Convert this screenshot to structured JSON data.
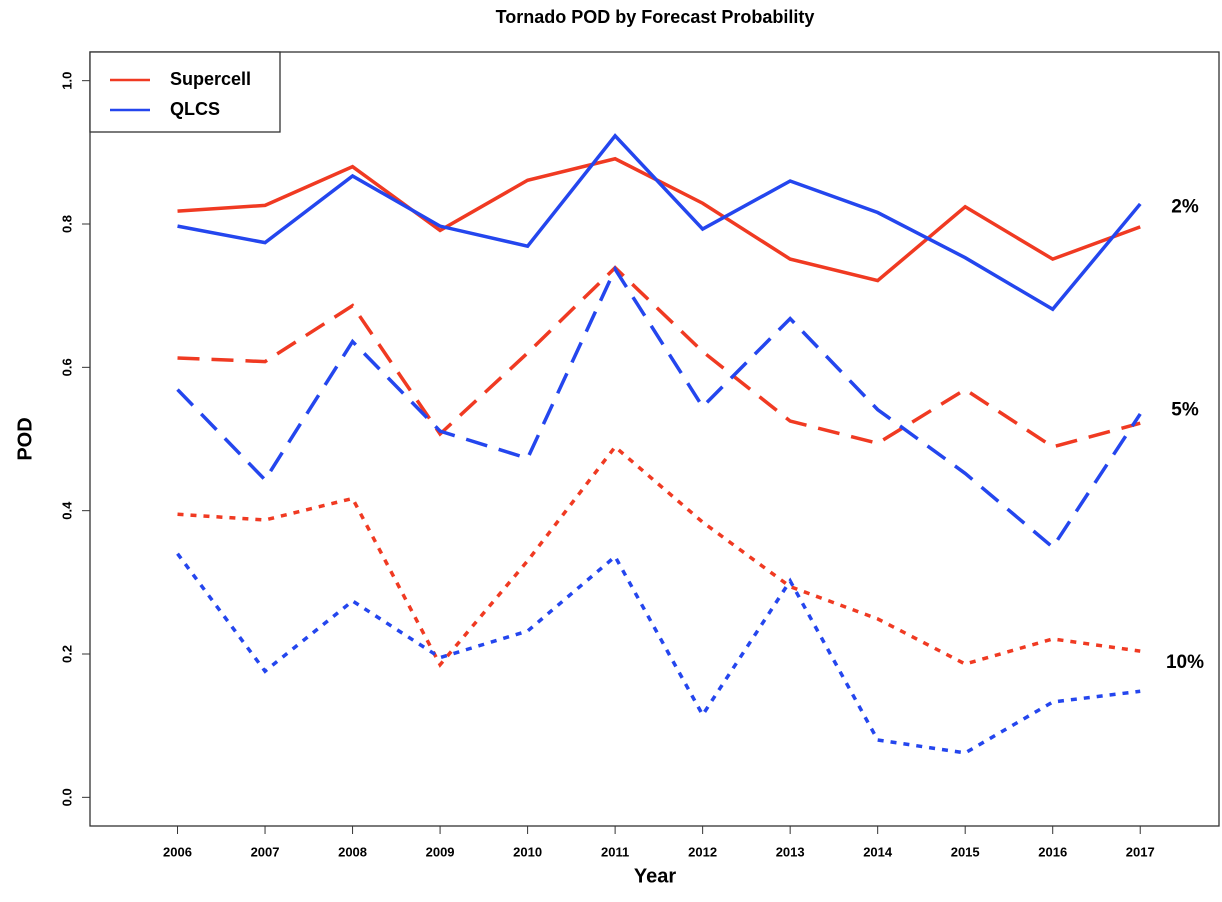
{
  "chart_data": {
    "type": "line",
    "title": "Tornado POD by Forecast Probability",
    "x_label": "Year",
    "y_label": "POD",
    "x": [
      2006,
      2007,
      2008,
      2009,
      2010,
      2011,
      2012,
      2013,
      2014,
      2015,
      2016,
      2017
    ],
    "xlim": [
      2005,
      2017.9
    ],
    "xticks": [
      2006,
      2007,
      2008,
      2009,
      2010,
      2011,
      2012,
      2013,
      2014,
      2015,
      2016,
      2017
    ],
    "ylim": [
      -0.04,
      1.04
    ],
    "yticks": [
      {
        "value": 0,
        "label": "0.0"
      },
      0.2,
      0.4,
      0.6,
      0.8,
      {
        "value": 1,
        "label": "1.0"
      }
    ],
    "legend": "top-left",
    "series": [
      {
        "name": "Supercell",
        "color": "#f03a22",
        "dash": "solid",
        "level": "2%",
        "values": [
          0.818,
          0.826,
          0.88,
          0.791,
          0.861,
          0.891,
          0.829,
          0.751,
          0.721,
          0.824,
          0.751,
          0.796
        ]
      },
      {
        "name": "QLCS",
        "color": "#2446ee",
        "dash": "solid",
        "level": "2%",
        "values": [
          0.797,
          0.774,
          0.867,
          0.797,
          0.769,
          0.923,
          0.793,
          0.86,
          0.816,
          0.753,
          0.681,
          0.828
        ]
      },
      {
        "name": "Supercell",
        "color": "#f03a22",
        "dash": "dashed",
        "level": "5%",
        "values": [
          0.613,
          0.608,
          0.686,
          0.507,
          0.62,
          0.739,
          0.622,
          0.525,
          0.494,
          0.569,
          0.489,
          0.522
        ]
      },
      {
        "name": "QLCS",
        "color": "#2446ee",
        "dash": "dashed",
        "level": "5%",
        "values": [
          0.569,
          0.443,
          0.636,
          0.511,
          0.473,
          0.737,
          0.545,
          0.668,
          0.541,
          0.452,
          0.349,
          0.535
        ]
      },
      {
        "name": "Supercell",
        "color": "#f03a22",
        "dash": "dotted",
        "level": "10%",
        "values": [
          0.395,
          0.387,
          0.417,
          0.185,
          0.33,
          0.489,
          0.384,
          0.294,
          0.249,
          0.186,
          0.221,
          0.204
        ]
      },
      {
        "name": "QLCS",
        "color": "#2446ee",
        "dash": "dotted",
        "level": "10%",
        "values": [
          0.34,
          0.176,
          0.274,
          0.195,
          0.232,
          0.336,
          0.115,
          0.302,
          0.08,
          0.062,
          0.133,
          0.148
        ]
      }
    ]
  }
}
